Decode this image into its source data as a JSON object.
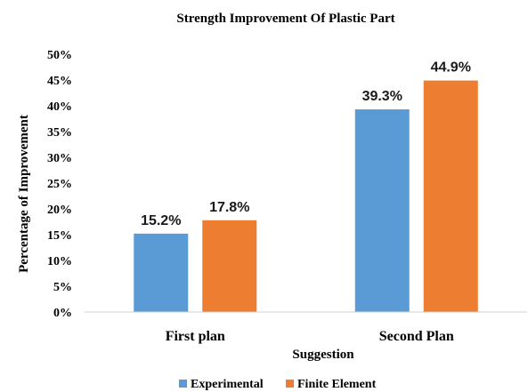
{
  "chart_data": {
    "type": "bar",
    "title": "Strength Improvement Of Plastic Part",
    "xlabel": "Suggestion",
    "ylabel": "Percentage of Improvement",
    "categories": [
      "First plan",
      "Second Plan"
    ],
    "series": [
      {
        "name": "Experimental",
        "values": [
          15.2,
          39.3
        ],
        "labels": [
          "15.2%",
          "39.3%"
        ],
        "color": "#5b9bd5"
      },
      {
        "name": "Finite Element",
        "values": [
          17.8,
          44.9
        ],
        "labels": [
          "17.8%",
          "44.9%"
        ],
        "color": "#ed7d31"
      }
    ],
    "ylim": [
      0,
      50
    ],
    "yticks": [
      "0%",
      "5%",
      "10%",
      "15%",
      "20%",
      "25%",
      "30%",
      "35%",
      "40%",
      "45%",
      "50%"
    ],
    "grid": false,
    "legend": "bottom"
  }
}
